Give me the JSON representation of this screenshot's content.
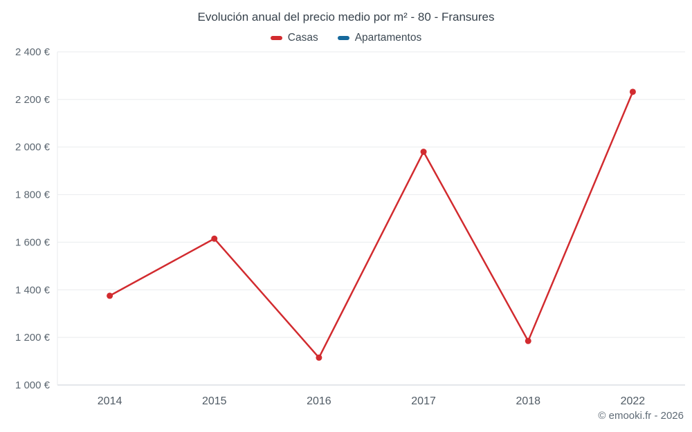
{
  "header": {
    "title": "Evolución anual del precio medio por m² - 80 - Fransures"
  },
  "legend": {
    "items": [
      {
        "label": "Casas",
        "color": "#d22b2f"
      },
      {
        "label": "Apartamentos",
        "color": "#16699c"
      }
    ]
  },
  "footer": {
    "credit": "© emooki.fr - 2026"
  },
  "chart_data": {
    "type": "line",
    "title": "Evolución anual del precio medio por m² - 80 - Fransures",
    "categories": [
      "2014",
      "2015",
      "2016",
      "2017",
      "2018",
      "2022"
    ],
    "series": [
      {
        "name": "Casas",
        "color": "#d22b2f",
        "values": [
          1375,
          1615,
          1115,
          1980,
          1185,
          2232
        ]
      },
      {
        "name": "Apartamentos",
        "color": "#16699c",
        "values": []
      }
    ],
    "xlabel": "",
    "ylabel": "",
    "ylim": [
      1000,
      2400
    ],
    "ytick_step": 200,
    "ytick_labels": [
      "1 000 €",
      "1 200 €",
      "1 400 €",
      "1 600 €",
      "1 800 €",
      "2 000 €",
      "2 200 €",
      "2 400 €"
    ],
    "grid": "horizontal",
    "legend_position": "top",
    "marker": "circle"
  }
}
